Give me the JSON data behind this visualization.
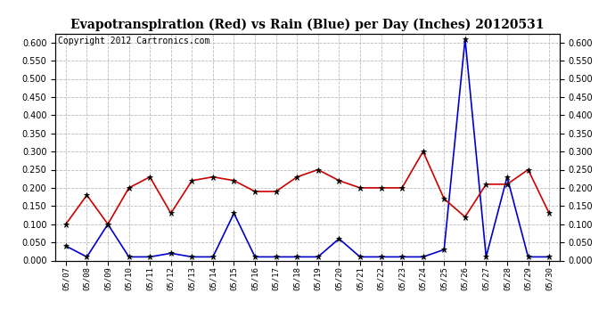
{
  "title": "Evapotranspiration (Red) vs Rain (Blue) per Day (Inches) 20120531",
  "copyright": "Copyright 2012 Cartronics.com",
  "dates": [
    "05/07",
    "05/08",
    "05/09",
    "05/10",
    "05/11",
    "05/12",
    "05/13",
    "05/14",
    "05/15",
    "05/16",
    "05/17",
    "05/18",
    "05/19",
    "05/20",
    "05/21",
    "05/22",
    "05/23",
    "05/24",
    "05/25",
    "05/26",
    "05/27",
    "05/28",
    "05/29",
    "05/30"
  ],
  "et_red": [
    0.1,
    0.18,
    0.1,
    0.2,
    0.23,
    0.13,
    0.22,
    0.23,
    0.22,
    0.19,
    0.19,
    0.23,
    0.25,
    0.22,
    0.2,
    0.2,
    0.2,
    0.3,
    0.17,
    0.12,
    0.21,
    0.21,
    0.25,
    0.13
  ],
  "rain_blue": [
    0.04,
    0.01,
    0.1,
    0.01,
    0.01,
    0.02,
    0.01,
    0.01,
    0.13,
    0.01,
    0.01,
    0.01,
    0.01,
    0.06,
    0.01,
    0.01,
    0.01,
    0.01,
    0.03,
    0.61,
    0.01,
    0.23,
    0.01,
    0.01
  ],
  "ylim": [
    0.0,
    0.625
  ],
  "yticks": [
    0.0,
    0.05,
    0.1,
    0.15,
    0.2,
    0.25,
    0.3,
    0.35,
    0.4,
    0.45,
    0.5,
    0.55,
    0.6
  ],
  "red_color": "#cc0000",
  "blue_color": "#0000cc",
  "bg_color": "#ffffff",
  "grid_color": "#bbbbbb",
  "title_fontsize": 10,
  "copyright_fontsize": 7
}
